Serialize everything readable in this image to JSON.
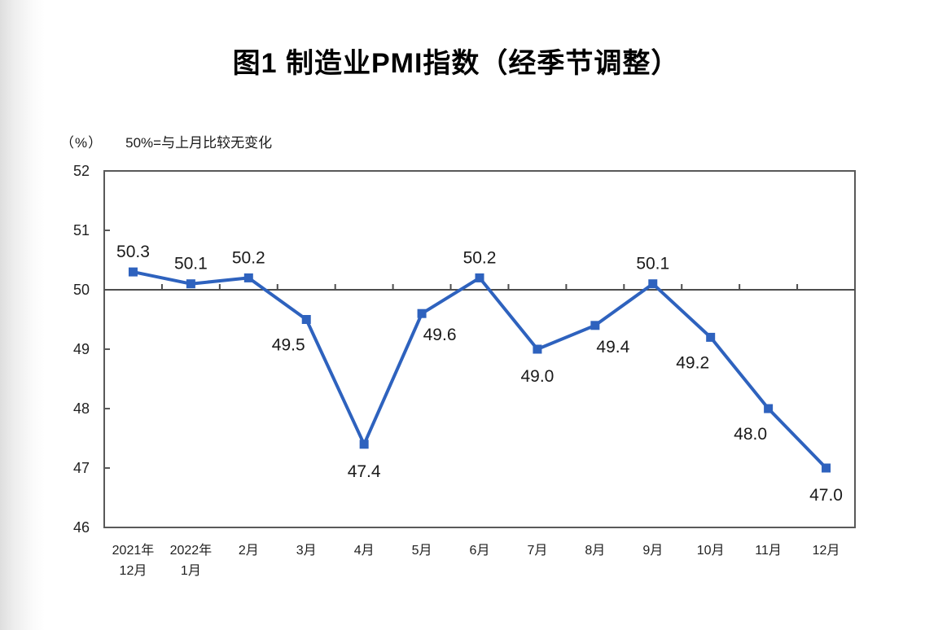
{
  "chart_data": {
    "type": "line",
    "title": "图1 制造业PMI指数（经季节调整）",
    "unit_label": "（%）",
    "note": "50%=与上月比较无变化",
    "categories": [
      [
        "2021年",
        "12月"
      ],
      [
        "2022年",
        "1月"
      ],
      [
        "2月"
      ],
      [
        "3月"
      ],
      [
        "4月"
      ],
      [
        "5月"
      ],
      [
        "6月"
      ],
      [
        "7月"
      ],
      [
        "8月"
      ],
      [
        "9月"
      ],
      [
        "10月"
      ],
      [
        "11月"
      ],
      [
        "12月"
      ]
    ],
    "values": [
      50.3,
      50.1,
      50.2,
      49.5,
      47.4,
      49.6,
      50.2,
      49.0,
      49.4,
      50.1,
      49.2,
      48.0,
      47.0
    ],
    "point_labels": [
      "50.3",
      "50.1",
      "50.2",
      "49.5",
      "47.4",
      "49.6",
      "50.2",
      "49.0",
      "49.4",
      "50.1",
      "49.2",
      "48.0",
      "47.0"
    ],
    "label_positions": [
      "above",
      "above",
      "above",
      "below-left",
      "below",
      "below-right",
      "above",
      "below",
      "below-right",
      "above",
      "below-left",
      "below-left",
      "below"
    ],
    "ylim": [
      46,
      52
    ],
    "yticks": [
      46,
      47,
      48,
      49,
      50,
      51,
      52
    ],
    "refline": 50,
    "legend": "none",
    "grid": "refline-only",
    "colors": {
      "line": "#2E62BE",
      "marker": "#2E62BE",
      "axis": "#595959",
      "refline": "#4D4D4D",
      "data_label": "#1A1A1A",
      "tick_label": "#1F1F1F",
      "title": "#000000"
    }
  }
}
